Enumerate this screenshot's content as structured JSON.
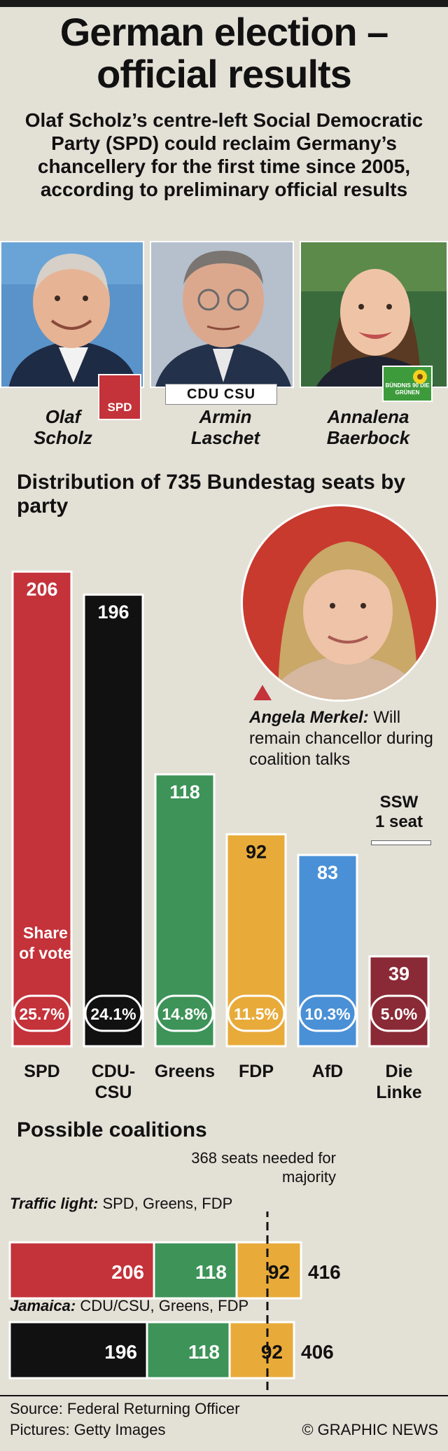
{
  "header": {
    "title_line1": "German election –",
    "title_line2": "official results",
    "subtitle": "Olaf Scholz’s centre-left Social Democratic Party (SPD) could reclaim Germany’s chancellery for the first time since 2005, according to preliminary official results"
  },
  "candidates": [
    {
      "first": "Olaf",
      "last": "Scholz",
      "logo": "SPD",
      "logo_color": "#c0272d"
    },
    {
      "first": "Armin",
      "last": "Laschet",
      "logo": "CDU CSU",
      "logo_color": "#111111"
    },
    {
      "first": "Annalena",
      "last": "Baerbock",
      "logo": "BÜNDNIS 90 DIE GRÜNEN",
      "logo_color": "#3e9b3c"
    }
  ],
  "seats_section": {
    "title": "Distribution of 735 Bundestag seats by party",
    "share_label": "Share of vote"
  },
  "merkel": {
    "name": "Angela Merkel:",
    "text": "Will remain chancellor during coalition talks"
  },
  "ssw": {
    "line1": "SSW",
    "line2": "1 seat"
  },
  "chart_data": {
    "type": "bar",
    "title": "Distribution of 735 Bundestag seats by party",
    "categories": [
      "SPD",
      "CDU-CSU",
      "Greens",
      "FDP",
      "AfD",
      "Die Linke"
    ],
    "category_lines": [
      [
        "SPD"
      ],
      [
        "CDU-",
        "CSU"
      ],
      [
        "Greens"
      ],
      [
        "FDP"
      ],
      [
        "AfD"
      ],
      [
        "Die",
        "Linke"
      ]
    ],
    "values": [
      206,
      196,
      118,
      92,
      83,
      39
    ],
    "vote_share": [
      "25.7%",
      "24.1%",
      "14.8%",
      "11.5%",
      "10.3%",
      "5.0%"
    ],
    "colors": [
      "#c4323a",
      "#111111",
      "#3d9358",
      "#e8ab3a",
      "#4a90d6",
      "#8a2a36"
    ],
    "total_seats": 735,
    "extra": {
      "party": "SSW",
      "seats": 1
    }
  },
  "coalitions": {
    "title": "Possible coalitions",
    "majority_note": "368 seats needed for majority",
    "majority": 368,
    "items": [
      {
        "name": "Traffic light:",
        "parties": "SPD, Greens, FDP",
        "segments": [
          206,
          118,
          92
        ],
        "colors": [
          "#c4323a",
          "#3d9358",
          "#e8ab3a"
        ],
        "total": "416"
      },
      {
        "name": "Jamaica:",
        "parties": "CDU/CSU, Greens, FDP",
        "segments": [
          196,
          118,
          92
        ],
        "colors": [
          "#111111",
          "#3d9358",
          "#e8ab3a"
        ],
        "total": "406"
      }
    ]
  },
  "footer": {
    "source": "Source: Federal Returning Officer",
    "pictures": "Pictures: Getty Images",
    "credit": "© GRAPHIC NEWS"
  }
}
